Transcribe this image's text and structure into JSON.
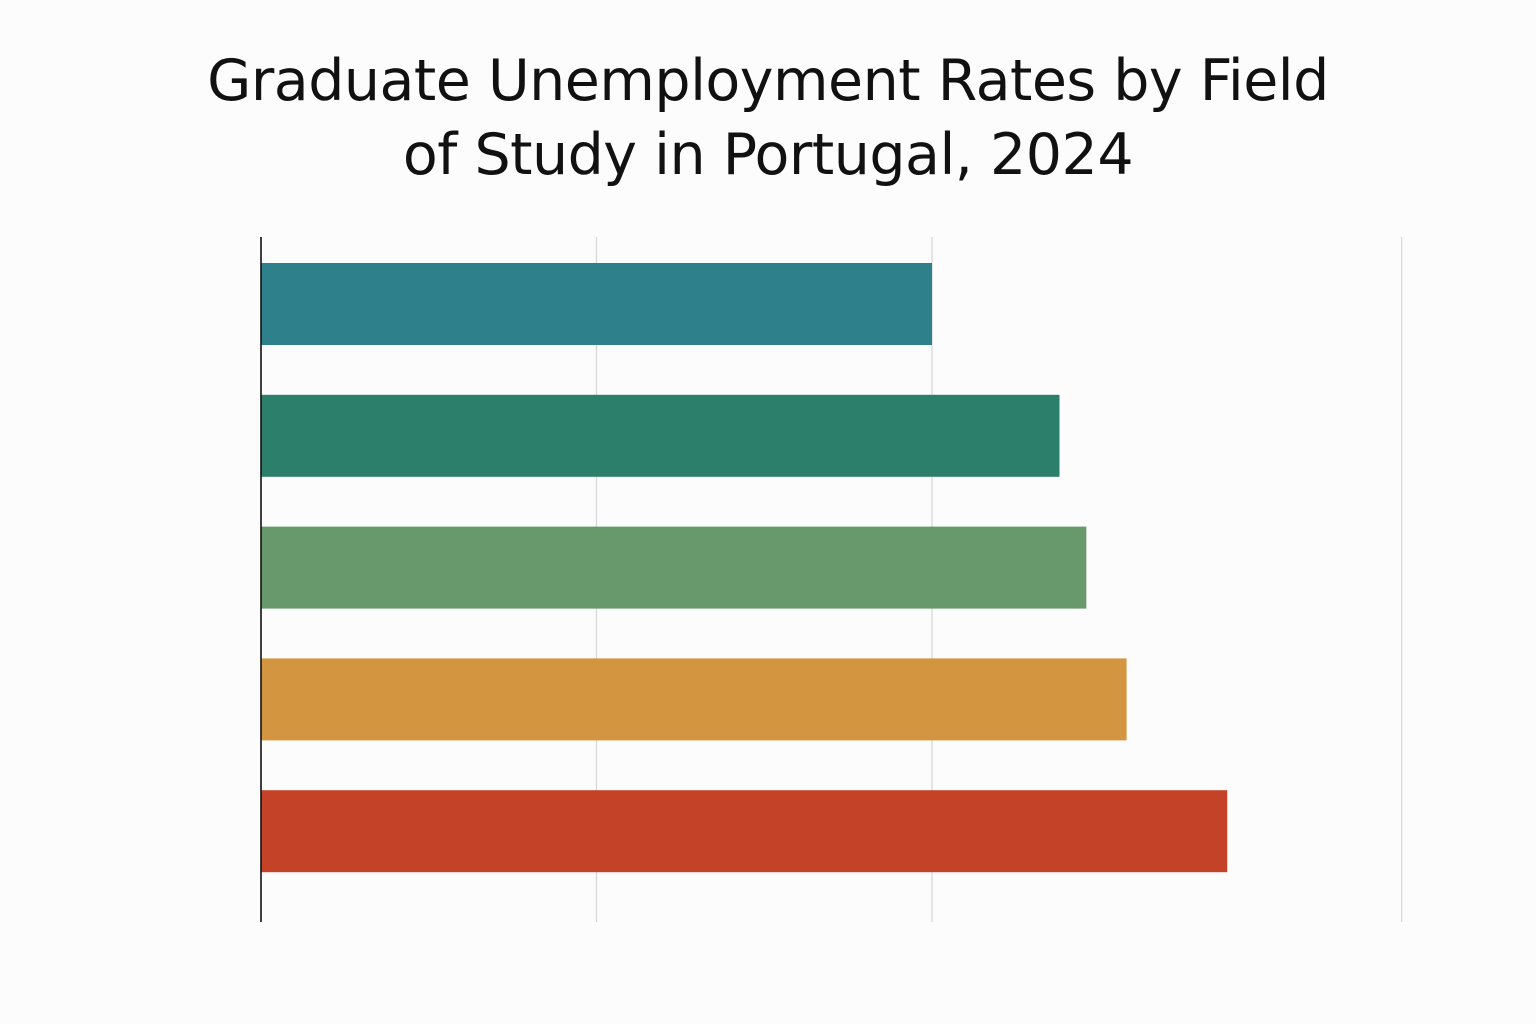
{
  "chart_data": {
    "type": "bar",
    "orientation": "horizontal",
    "title_lines": [
      "Graduate Unemployment Rates by Field",
      "of Study in Portugal, 2024"
    ],
    "categories": [
      "",
      "",
      "",
      "",
      ""
    ],
    "values": [
      10.0,
      11.9,
      12.3,
      12.9,
      14.4
    ],
    "colors": [
      "#2e808a",
      "#2c7f6b",
      "#67996d",
      "#d49540",
      "#c44328"
    ],
    "xlim": [
      0,
      17
    ],
    "gridlines": [
      5,
      10,
      17
    ],
    "grid": true,
    "xlabel": "",
    "ylabel": ""
  }
}
